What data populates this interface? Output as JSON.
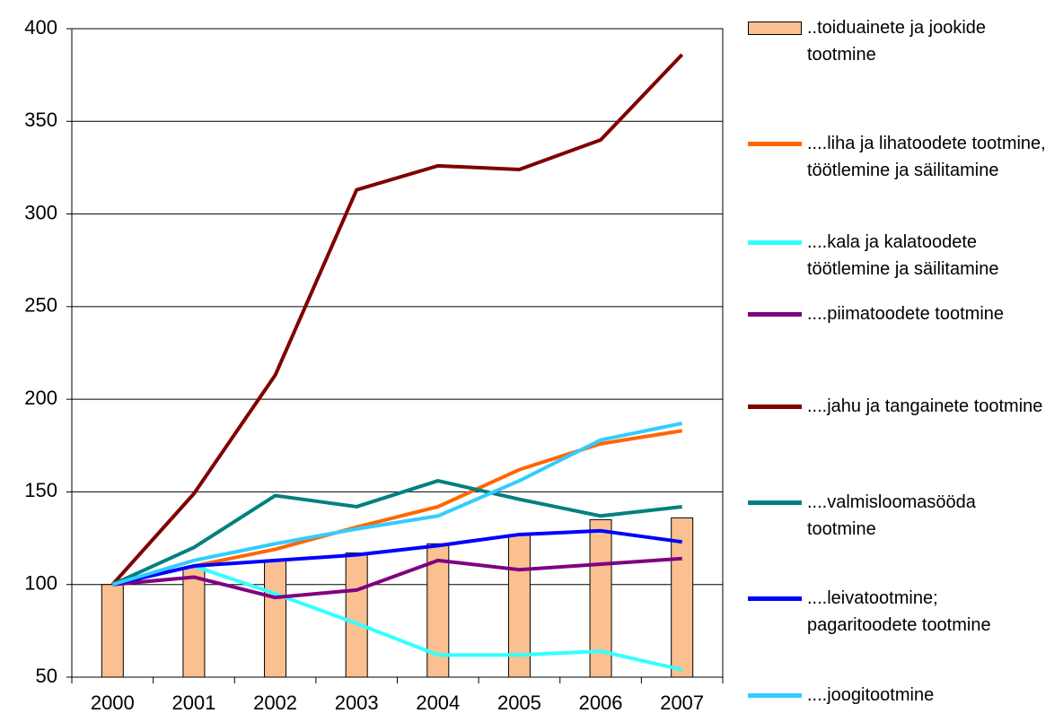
{
  "chart_data": {
    "type": "combo",
    "categories": [
      "2000",
      "2001",
      "2002",
      "2003",
      "2004",
      "2005",
      "2006",
      "2007"
    ],
    "ylim": [
      50,
      400
    ],
    "yticks": [
      50,
      100,
      150,
      200,
      250,
      300,
      350,
      400
    ],
    "grid": true,
    "series": [
      {
        "name": "..toiduainete ja jookide tootmine",
        "type": "bar",
        "color": "#fac090",
        "values": [
          100,
          109,
          113,
          117,
          122,
          127,
          135,
          136
        ]
      },
      {
        "name": "....liha ja lihatoodete tootmine, töötlemine ja säilitamine",
        "type": "line",
        "color": "#ff6600",
        "values": [
          100,
          110,
          119,
          131,
          142,
          162,
          176,
          183
        ]
      },
      {
        "name": "....kala ja kalatoodete töötlemine ja säilitamine",
        "type": "line",
        "color": "#33ffff",
        "values": [
          100,
          110,
          95,
          79,
          62,
          62,
          64,
          54
        ]
      },
      {
        "name": "....piimatoodete tootmine",
        "type": "line",
        "color": "#800080",
        "values": [
          100,
          104,
          93,
          97,
          113,
          108,
          111,
          114
        ]
      },
      {
        "name": "....jahu ja tangainete tootmine",
        "type": "line",
        "color": "#800000",
        "values": [
          100,
          149,
          213,
          313,
          326,
          324,
          340,
          386
        ]
      },
      {
        "name": "....valmisloomasööda tootmine",
        "type": "line",
        "color": "#008080",
        "values": [
          100,
          120,
          148,
          142,
          156,
          146,
          137,
          142
        ]
      },
      {
        "name": "....leivatootmine; pagaritoodete tootmine",
        "type": "line",
        "color": "#0000ff",
        "values": [
          100,
          110,
          113,
          116,
          121,
          127,
          129,
          123
        ]
      },
      {
        "name": "....joogitootmine",
        "type": "line",
        "color": "#33ccff",
        "values": [
          100,
          113,
          122,
          130,
          137,
          156,
          178,
          187
        ]
      }
    ]
  }
}
